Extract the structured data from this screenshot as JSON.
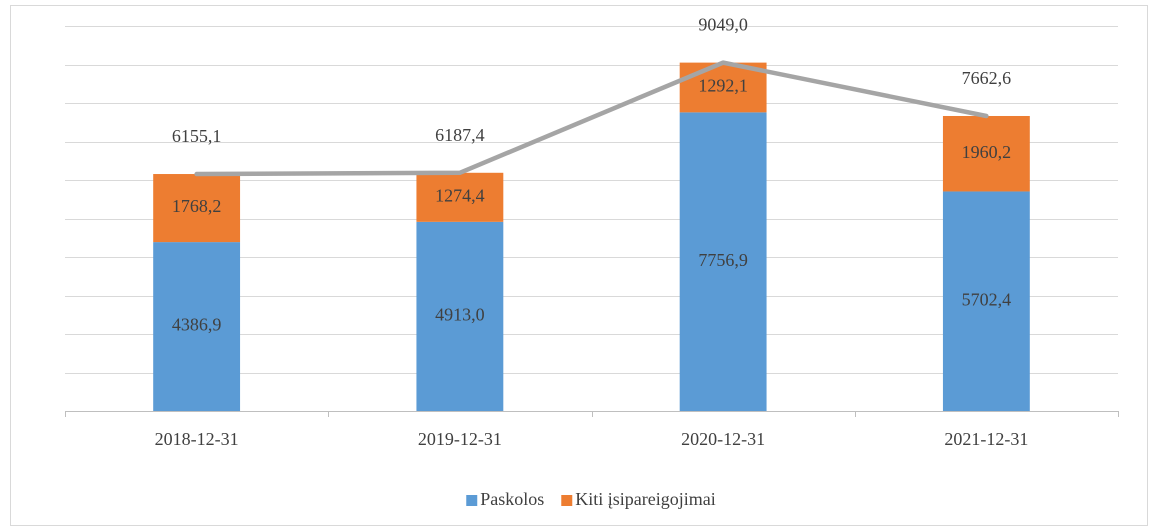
{
  "chart_data": {
    "type": "bar",
    "stacked": true,
    "categories": [
      "2018-12-31",
      "2019-12-31",
      "2020-12-31",
      "2021-12-31"
    ],
    "series": [
      {
        "name": "Paskolos",
        "color": "#5b9bd5",
        "values": [
          4386.9,
          4913.0,
          7756.9,
          5702.4
        ],
        "value_labels": [
          "4386,9",
          "4913,0",
          "7756,9",
          "5702,4"
        ]
      },
      {
        "name": "Kiti įsipareigojimai",
        "color": "#ed7d31",
        "values": [
          1768.2,
          1274.4,
          1292.1,
          1960.2
        ],
        "value_labels": [
          "1768,2",
          "1274,4",
          "1292,1",
          "1960,2"
        ]
      }
    ],
    "line": {
      "type": "line",
      "color": "#a5a5a5",
      "values": [
        6155.1,
        6187.4,
        9049.0,
        7662.6
      ],
      "value_labels": [
        "6155,1",
        "6187,4",
        "9049,0",
        "7662,6"
      ]
    },
    "ylim": [
      0,
      10000
    ],
    "yticks": [
      0,
      1000,
      2000,
      3000,
      4000,
      5000,
      6000,
      7000,
      8000,
      9000,
      10000
    ],
    "grid": true,
    "legend": "bottom"
  }
}
